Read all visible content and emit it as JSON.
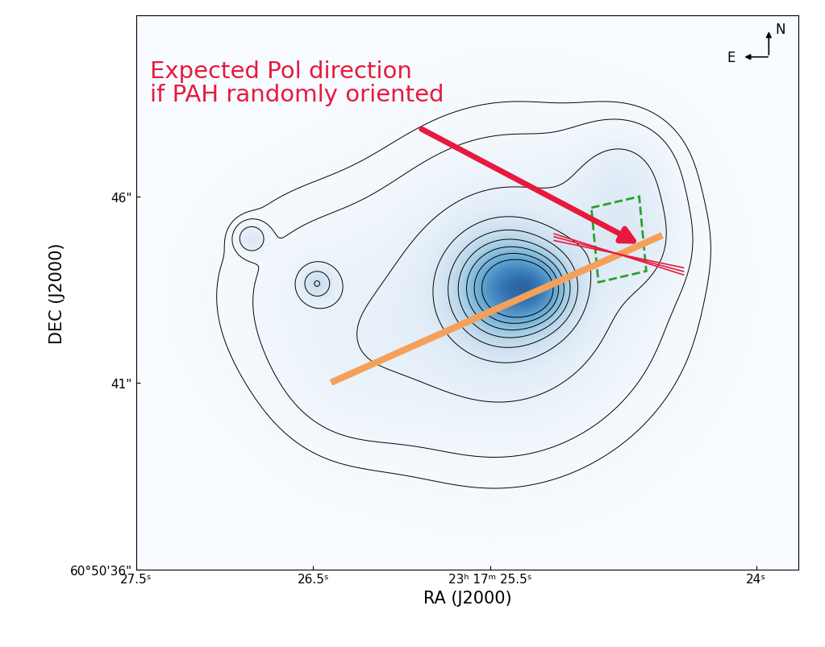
{
  "chart_data": {
    "type": "image",
    "xlabel": "RA (J2000)",
    "ylabel": "DEC (J2000)",
    "xlim": [
      27.5,
      23.76
    ],
    "ylim": [
      36,
      50.86
    ],
    "xticks": [
      {
        "value": 27.5,
        "label": "27.5ˢ"
      },
      {
        "value": 26.5,
        "label": "26.5ˢ"
      },
      {
        "value": 25.5,
        "label": "23ʰ 17ᵐ 25.5ˢ"
      },
      {
        "value": 24,
        "label": "24ˢ"
      }
    ],
    "yticks": [
      {
        "value": 36,
        "label": "60°50'36\""
      },
      {
        "value": 41,
        "label": "41\""
      },
      {
        "value": 46,
        "label": "46\""
      }
    ],
    "sources": [
      {
        "ra": 25.41,
        "dec": 43.56,
        "peak": 1.0,
        "size": 0.9
      },
      {
        "ra": 25.35,
        "dec": 43.6,
        "peak": 0.25,
        "size": 2.4
      },
      {
        "ra": 25.22,
        "dec": 43.5,
        "peak": 0.5,
        "size": 0.6
      },
      {
        "ra": 26.48,
        "dec": 43.67,
        "peak": 0.35,
        "size": 0.3
      },
      {
        "ra": 26.85,
        "dec": 44.88,
        "peak": 0.25,
        "size": 0.25
      },
      {
        "ra": 24.75,
        "dec": 46.6,
        "peak": 0.14,
        "size": 0.9
      },
      {
        "ra": 24.72,
        "dec": 44.9,
        "peak": 0.16,
        "size": 0.9
      },
      {
        "ra": 26.5,
        "dec": 43.4,
        "peak": 0.08,
        "size": 1.8
      },
      {
        "ra": 26.3,
        "dec": 41.0,
        "peak": 0.06,
        "size": 1.4
      },
      {
        "ra": 25.6,
        "dec": 41.6,
        "peak": 0.05,
        "size": 2.0
      }
    ],
    "annotation": {
      "text": "Expected Pol direction\nif PAH randomly oriented",
      "color": "#e8193c",
      "text_ra": 27.42,
      "text_dec": 49.67,
      "arrow_from": [
        25.9,
        47.84
      ],
      "arrow_to": [
        24.65,
        44.7
      ]
    },
    "orange_line": {
      "color": "#f5a05a",
      "ra": [
        26.4,
        24.53
      ],
      "dec": [
        41.01,
        44.96
      ]
    },
    "pol_vectors": {
      "color": "#e8193c",
      "ra": [
        [
          25.14,
          24.41
        ],
        [
          25.14,
          24.41
        ],
        [
          25.14,
          24.41
        ]
      ],
      "dec": [
        [
          44.92,
          43.99
        ],
        [
          44.82,
          44.09
        ],
        [
          45.0,
          43.9
        ]
      ]
    },
    "region": {
      "color": "#2ca02c",
      "ra": [
        24.93,
        24.66,
        24.62,
        24.89
      ],
      "dec": [
        45.7,
        46.0,
        44.0,
        43.7
      ]
    },
    "compass": {
      "north": "N",
      "east": "E"
    }
  }
}
